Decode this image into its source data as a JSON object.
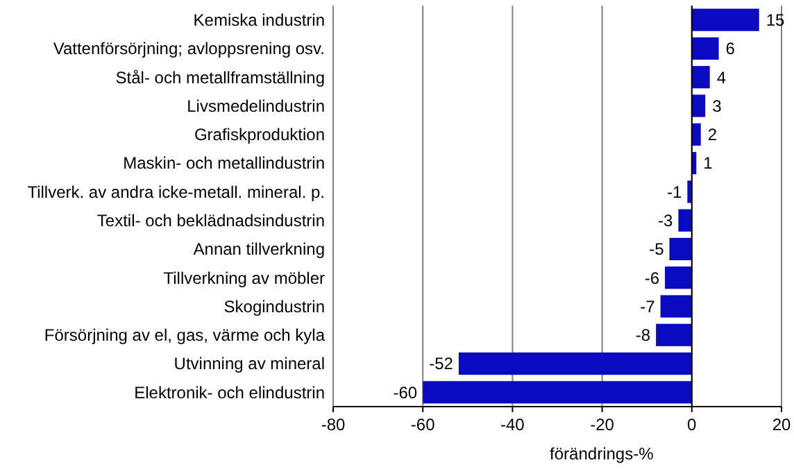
{
  "chart_data": {
    "type": "bar",
    "orientation": "horizontal",
    "xlabel": "förändrings-%",
    "categories": [
      "Kemiska industrin",
      "Vattenförsörjning; avloppsrening osv.",
      "Stål- och metallframställning",
      "Livsmedelindustrin",
      "Grafiskproduktion",
      "Maskin- och metallindustrin",
      "Tillverk. av andra icke-metall. mineral. p.",
      "Textil- och beklädnadsindustrin",
      "Annan tillverkning",
      "Tillverkning av möbler",
      "Skogindustrin",
      "Försörjning av el, gas, värme och kyla",
      "Utvinning av mineral",
      "Elektronik- och elindustrin"
    ],
    "values": [
      15,
      6,
      4,
      3,
      2,
      1,
      -1,
      -3,
      -5,
      -6,
      -7,
      -8,
      -52,
      -60
    ],
    "color": "#0a0ac0",
    "xlim": [
      -80,
      20
    ],
    "xticks": [
      -80,
      -60,
      -40,
      -20,
      0,
      20
    ],
    "grid": "x",
    "data_labels": true
  }
}
